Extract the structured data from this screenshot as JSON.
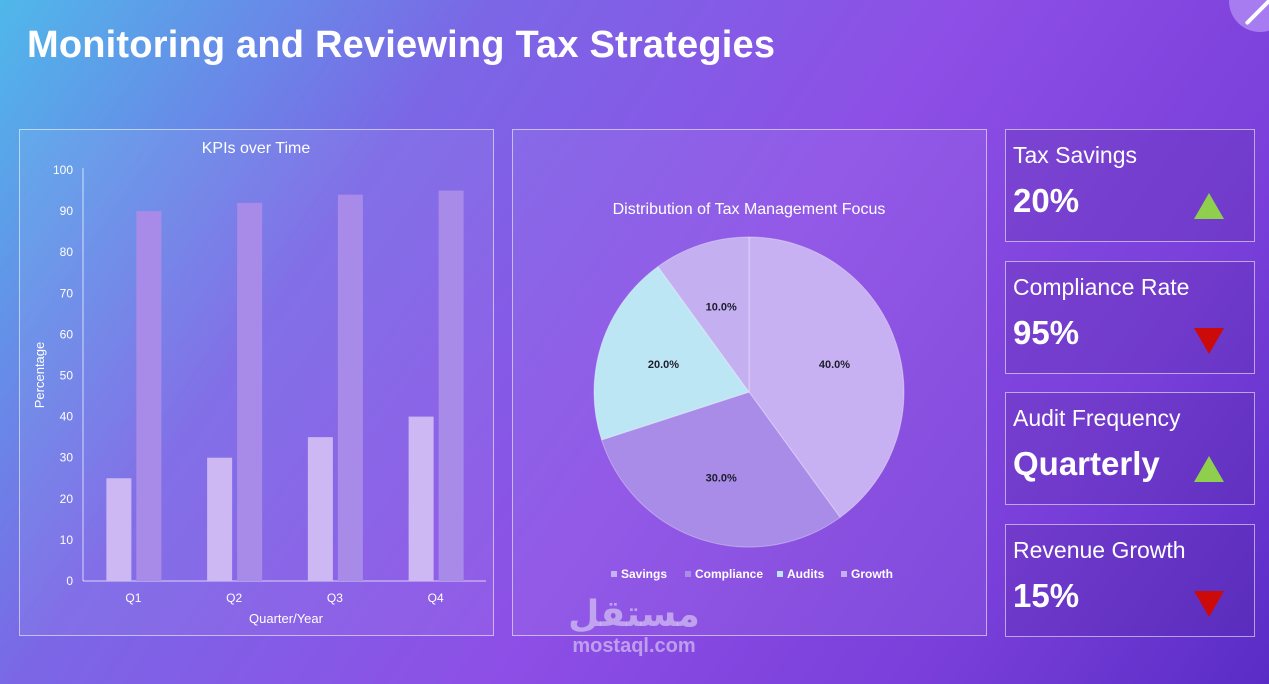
{
  "page": {
    "title": "Monitoring and Reviewing Tax Strategies"
  },
  "chart_data": [
    {
      "type": "bar",
      "title": "KPIs over Time",
      "xlabel": "Quarter/Year",
      "ylabel": "Percentage",
      "categories": [
        "Q1",
        "Q2",
        "Q3",
        "Q4"
      ],
      "ylim": [
        0,
        100
      ],
      "yticks": [
        0,
        10,
        20,
        30,
        40,
        50,
        60,
        70,
        80,
        90,
        100
      ],
      "grid": false,
      "series": [
        {
          "values": [
            25,
            30,
            35,
            40
          ],
          "color": "#cdb8f4"
        },
        {
          "values": [
            90,
            92,
            94,
            95
          ],
          "color": "#a88be8"
        }
      ]
    },
    {
      "type": "pie",
      "title": "Distribution of Tax Management Focus",
      "labels": [
        "Savings",
        "Compliance",
        "Audits",
        "Growth"
      ],
      "values": [
        40,
        30,
        20,
        10
      ],
      "value_labels": [
        "40.0%",
        "30.0%",
        "20.0%",
        "10.0%"
      ],
      "colors": [
        "#c8b1f2",
        "#a98be8",
        "#bde6f5",
        "#c4aff1"
      ],
      "legend_position": "bottom"
    }
  ],
  "kpis": [
    {
      "label": "Tax Savings",
      "value": "20%",
      "trend": "up"
    },
    {
      "label": "Compliance Rate",
      "value": "95%",
      "trend": "down"
    },
    {
      "label": "Audit Frequency",
      "value": "Quarterly",
      "trend": "up"
    },
    {
      "label": "Revenue Growth",
      "value": "15%",
      "trend": "down"
    }
  ],
  "colors": {
    "trend_up": "#8fcf4e",
    "trend_down": "#cc0a0a"
  },
  "watermark": {
    "logo_text": "مستقل",
    "url": "mostaql.com"
  }
}
